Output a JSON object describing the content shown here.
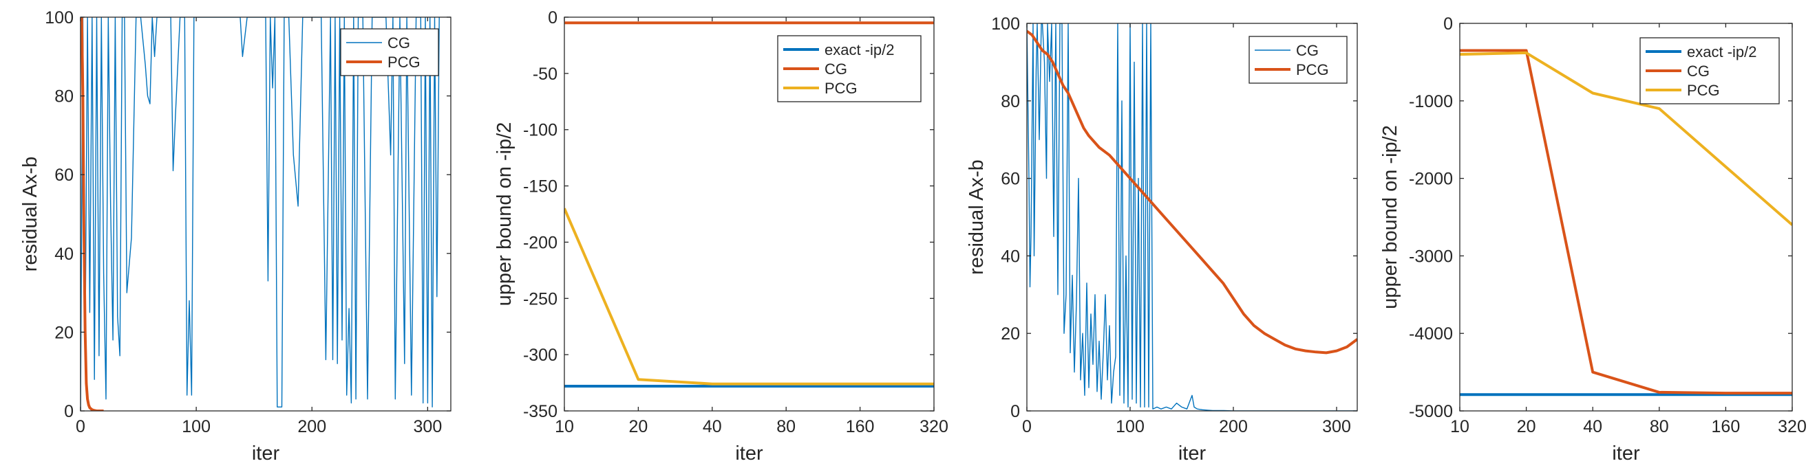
{
  "colors": {
    "blue": "#0072BD",
    "orange": "#D95319",
    "yellow": "#EDB120",
    "axis": "#262626"
  },
  "chart_data": [
    {
      "type": "line",
      "xlabel": "iter",
      "ylabel": "residual Ax-b",
      "xscale": "linear",
      "xlim": [
        0,
        320
      ],
      "ylim": [
        0,
        100
      ],
      "xticks": [
        0,
        100,
        200,
        300
      ],
      "yticks": [
        0,
        20,
        40,
        60,
        80,
        100
      ],
      "legend": "top-right",
      "grid": false,
      "series": [
        {
          "name": "CG",
          "color": "#0072BD",
          "width": "thin",
          "x": [
            0,
            2,
            4,
            6,
            8,
            10,
            12,
            14,
            16,
            18,
            20,
            22,
            24,
            26,
            28,
            30,
            32,
            34,
            36,
            38,
            40,
            44,
            48,
            52,
            56,
            58,
            60,
            62,
            64,
            66,
            68,
            70,
            72,
            76,
            78,
            80,
            82,
            86,
            88,
            90,
            92,
            94,
            96,
            98,
            100,
            104,
            110,
            120,
            130,
            138,
            140,
            144,
            150,
            156,
            160,
            162,
            164,
            166,
            168,
            170,
            172,
            174,
            176,
            180,
            184,
            188,
            192,
            196,
            200,
            204,
            208,
            212,
            216,
            218,
            220,
            222,
            224,
            226,
            228,
            230,
            232,
            234,
            236,
            238,
            240,
            244,
            248,
            252,
            256,
            260,
            264,
            268,
            270,
            272,
            276,
            280,
            282,
            286,
            290,
            294,
            296,
            298,
            300,
            302,
            304,
            306,
            308,
            310
          ],
          "y": [
            0,
            100,
            15,
            100,
            25,
            100,
            8,
            100,
            14,
            100,
            35,
            3,
            100,
            52,
            18,
            100,
            24,
            14,
            100,
            100,
            30,
            44,
            100,
            100,
            88,
            80,
            78,
            100,
            90,
            100,
            100,
            100,
            100,
            100,
            100,
            61,
            75,
            100,
            100,
            100,
            4,
            28,
            4,
            100,
            100,
            100,
            100,
            100,
            100,
            100,
            90,
            100,
            100,
            100,
            100,
            33,
            100,
            82,
            100,
            1,
            1,
            1,
            100,
            100,
            65,
            52,
            100,
            100,
            100,
            100,
            100,
            13,
            100,
            13,
            100,
            12,
            100,
            18,
            100,
            4,
            26,
            2,
            100,
            3,
            100,
            100,
            3,
            100,
            100,
            100,
            100,
            65,
            100,
            3,
            100,
            12,
            100,
            4,
            100,
            100,
            2,
            100,
            2,
            100,
            1,
            100,
            29,
            100
          ]
        },
        {
          "name": "PCG",
          "color": "#D95319",
          "width": "thick",
          "x": [
            0,
            1,
            2,
            3,
            4,
            5,
            6,
            7,
            8,
            10,
            12,
            14,
            20
          ],
          "y": [
            100,
            100,
            80,
            45,
            20,
            7,
            3,
            1.5,
            0.8,
            0.3,
            0.1,
            0,
            0
          ]
        }
      ]
    },
    {
      "type": "line",
      "xlabel": "iter",
      "ylabel": "upper bound on -ip/2",
      "xscale": "log2",
      "xlim": [
        10,
        320
      ],
      "ylim": [
        -350,
        0
      ],
      "xticks": [
        10,
        20,
        40,
        80,
        160,
        320
      ],
      "yticks": [
        0,
        -50,
        -100,
        -150,
        -200,
        -250,
        -300,
        -350
      ],
      "legend": "top-right",
      "grid": false,
      "series": [
        {
          "name": "exact -ip/2",
          "color": "#0072BD",
          "width": "thick",
          "x": [
            10,
            320
          ],
          "y": [
            -328,
            -328
          ]
        },
        {
          "name": "CG",
          "color": "#D95319",
          "width": "thick",
          "x": [
            10,
            20,
            40,
            80,
            160,
            320
          ],
          "y": [
            -5,
            -5,
            -5,
            -5,
            -5,
            -5
          ]
        },
        {
          "name": "PCG",
          "color": "#EDB120",
          "width": "thick",
          "x": [
            10,
            20,
            40,
            80,
            160,
            320
          ],
          "y": [
            -170,
            -322,
            -326,
            -326,
            -326,
            -326
          ]
        }
      ]
    },
    {
      "type": "line",
      "xlabel": "iter",
      "ylabel": "residual Ax-b",
      "xscale": "linear",
      "xlim": [
        0,
        320
      ],
      "ylim": [
        0,
        100
      ],
      "xticks": [
        0,
        100,
        200,
        300
      ],
      "yticks": [
        0,
        20,
        40,
        60,
        80,
        100
      ],
      "legend": "top-right",
      "grid": false,
      "series": [
        {
          "name": "CG",
          "color": "#0072BD",
          "width": "thin",
          "x": [
            0,
            2,
            3,
            4,
            6,
            7,
            9,
            10,
            12,
            14,
            15,
            17,
            19,
            20,
            22,
            24,
            26,
            28,
            30,
            32,
            34,
            36,
            38,
            40,
            42,
            44,
            46,
            48,
            50,
            52,
            54,
            56,
            58,
            60,
            62,
            64,
            66,
            68,
            70,
            72,
            74,
            76,
            78,
            80,
            82,
            84,
            86,
            88,
            90,
            92,
            94,
            96,
            98,
            100,
            102,
            104,
            106,
            108,
            110,
            112,
            114,
            116,
            118,
            120,
            122,
            126,
            130,
            135,
            140,
            145,
            150,
            155,
            160,
            162,
            165,
            170,
            175,
            180,
            190,
            200,
            220,
            240,
            260,
            280,
            300,
            320
          ],
          "y": [
            100,
            60,
            32,
            45,
            100,
            40,
            88,
            100,
            70,
            100,
            100,
            90,
            60,
            100,
            85,
            100,
            45,
            100,
            30,
            100,
            100,
            20,
            30,
            100,
            15,
            35,
            10,
            28,
            60,
            8,
            20,
            4,
            33,
            6,
            25,
            12,
            30,
            5,
            18,
            3,
            15,
            30,
            8,
            22,
            2,
            10,
            14,
            100,
            4,
            80,
            2,
            40,
            1,
            100,
            3,
            90,
            2,
            60,
            1,
            100,
            1,
            100,
            1,
            100,
            0.5,
            1,
            0.5,
            1,
            0.5,
            2,
            1,
            0.5,
            4,
            1,
            0.5,
            0.3,
            0.2,
            0.1,
            0.1,
            0,
            0,
            0,
            0,
            0,
            0,
            0
          ]
        },
        {
          "name": "PCG",
          "color": "#D95319",
          "width": "thick",
          "x": [
            0,
            5,
            10,
            15,
            20,
            25,
            30,
            35,
            40,
            45,
            50,
            55,
            60,
            70,
            80,
            90,
            100,
            110,
            120,
            130,
            140,
            150,
            160,
            170,
            180,
            190,
            200,
            210,
            220,
            230,
            240,
            250,
            260,
            270,
            280,
            290,
            300,
            310,
            320
          ],
          "y": [
            98,
            97,
            95,
            93,
            92,
            90,
            87,
            84,
            82,
            79,
            76,
            73,
            71,
            68,
            66,
            63,
            60,
            57,
            54,
            51,
            48,
            45,
            42,
            39,
            36,
            33,
            29,
            25,
            22,
            20,
            18.5,
            17,
            16,
            15.5,
            15.2,
            15,
            15.5,
            16.5,
            18.5
          ]
        }
      ]
    },
    {
      "type": "line",
      "xlabel": "iter",
      "ylabel": "upper bound on -ip/2",
      "xscale": "log2",
      "xlim": [
        10,
        320
      ],
      "ylim": [
        -5000,
        0
      ],
      "xticks": [
        10,
        20,
        40,
        80,
        160,
        320
      ],
      "yticks": [
        0,
        -1000,
        -2000,
        -3000,
        -4000,
        -5000
      ],
      "legend": "top-right",
      "grid": false,
      "series": [
        {
          "name": "exact -ip/2",
          "color": "#0072BD",
          "width": "thick",
          "x": [
            10,
            320
          ],
          "y": [
            -4790,
            -4790
          ]
        },
        {
          "name": "CG",
          "color": "#D95319",
          "width": "thick",
          "x": [
            10,
            20,
            40,
            80,
            160,
            320
          ],
          "y": [
            -350,
            -350,
            -4500,
            -4760,
            -4770,
            -4770
          ]
        },
        {
          "name": "PCG",
          "color": "#EDB120",
          "width": "thick",
          "x": [
            10,
            20,
            40,
            80,
            160,
            320
          ],
          "y": [
            -400,
            -380,
            -900,
            -1100,
            -1850,
            -2600
          ]
        }
      ]
    }
  ]
}
